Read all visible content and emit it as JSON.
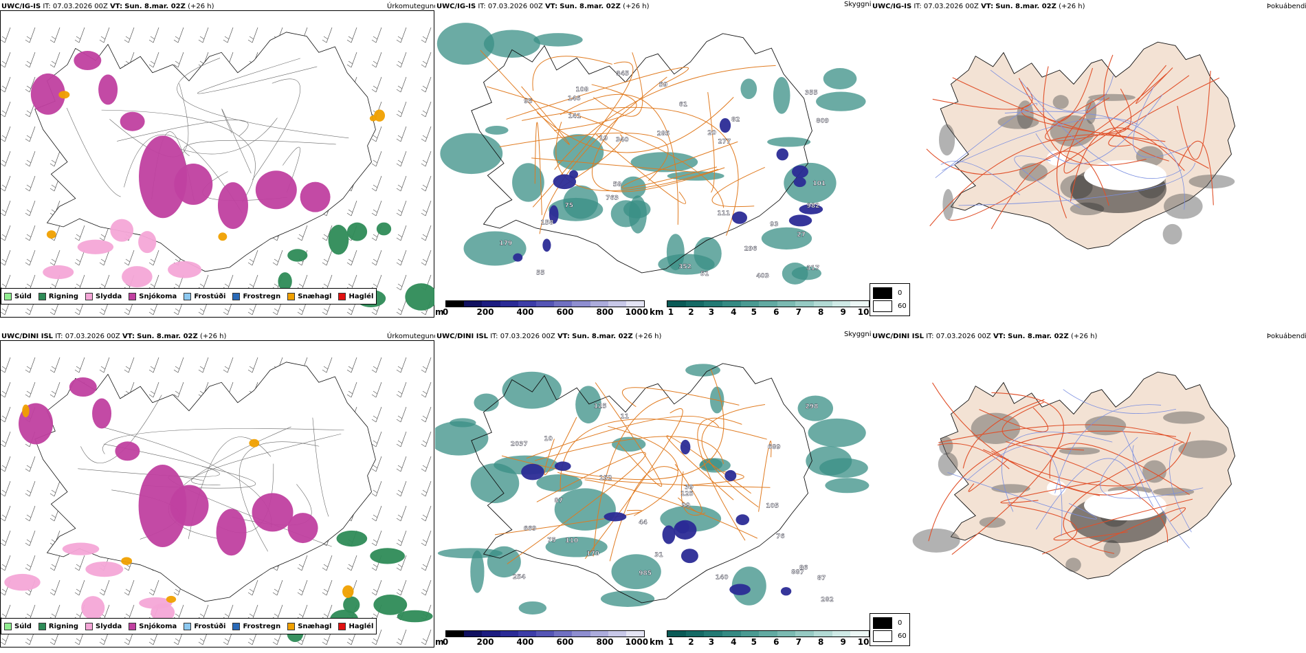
{
  "panels": [
    {
      "precip": {
        "model": "UWC/IG-IS",
        "it_label": "IT:",
        "it": "07.03.2026 00Z",
        "vt_label": "VT:",
        "vt": "Sun. 8.mar. 02Z",
        "lead": "(+26 h)",
        "name": "Úrkomutegund"
      },
      "cloud": {
        "model": "UWC/IG-IS",
        "it_label": "IT:",
        "it": "07.03.2026 00Z",
        "vt_label": "VT:",
        "vt": "Sun. 8.mar. 02Z",
        "lead": "(+26 h)",
        "name": "Skyggni"
      },
      "fog": {
        "model": "UWC/IG-IS",
        "it_label": "IT:",
        "it": "07.03.2026 00Z",
        "vt_label": "VT:",
        "vt": "Sun. 8.mar. 02Z",
        "lead": "(+26 h)",
        "name": "Þokuábendi"
      },
      "labels": [
        "19",
        "179",
        "51",
        "277",
        "141",
        "355",
        "27",
        "95",
        "58",
        "345",
        "317",
        "75",
        "340",
        "55",
        "93",
        "108",
        "101",
        "61",
        "763",
        "403",
        "82",
        "809",
        "982",
        "20",
        "285",
        "296",
        "111",
        "146",
        "352",
        "158",
        "59"
      ]
    },
    {
      "precip": {
        "model": "UWC/DINI ISL",
        "it_label": "IT:",
        "it": "07.03.2026 00Z",
        "vt_label": "VT:",
        "vt": "Sun. 8.mar. 02Z",
        "lead": "(+26 h)",
        "name": "Úrkomutegund"
      },
      "cloud": {
        "model": "UWC/DINI ISL",
        "it_label": "IT:",
        "it": "07.03.2026 00Z",
        "vt_label": "VT:",
        "vt": "Sun. 8.mar. 02Z",
        "lead": "(+26 h)",
        "name": "Skyggni"
      },
      "fog": {
        "model": "UWC/DINI ISL",
        "it_label": "IT:",
        "it": "07.03.2026 00Z",
        "vt_label": "VT:",
        "vt": "Sun. 8.mar. 02Z",
        "lead": "(+26 h)",
        "name": "Þokuábendi"
      },
      "labels": [
        "282",
        "31",
        "110",
        "125",
        "298",
        "76",
        "11",
        "170",
        "10",
        "125",
        "689",
        "44",
        "87",
        "86",
        "2037",
        "99",
        "887",
        "152",
        "254",
        "669",
        "39",
        "87",
        "105",
        "75",
        "140",
        "985"
      ]
    }
  ],
  "precip_legend": [
    {
      "label": "Súld",
      "color": "#90ee90"
    },
    {
      "label": "Rigning",
      "color": "#2e8b57"
    },
    {
      "label": "Slydda",
      "color": "#f4a6d7"
    },
    {
      "label": "Snjókoma",
      "color": "#c040a0"
    },
    {
      "label": "Frostúði",
      "color": "#8cc8f0"
    },
    {
      "label": "Frostregn",
      "color": "#2a6ab8"
    },
    {
      "label": "Snæhagl",
      "color": "#f0a000"
    },
    {
      "label": "Haglél",
      "color": "#e01010"
    }
  ],
  "ceiling_scale": {
    "unit": "m",
    "ticks": [
      "0",
      "200",
      "400",
      "600",
      "800",
      "1000"
    ],
    "colors": [
      "#000000",
      "#101060",
      "#1c1c80",
      "#2b2b96",
      "#3d3da8",
      "#5555b5",
      "#7070c2",
      "#8e8ed0",
      "#acacdc",
      "#c8c8e8",
      "#e4e4f4"
    ]
  },
  "vis_scale": {
    "unit": "km",
    "ticks": [
      "1",
      "2",
      "3",
      "4",
      "5",
      "6",
      "7",
      "8",
      "9",
      "10"
    ],
    "colors": [
      "#0a5a56",
      "#156a65",
      "#237a74",
      "#358a83",
      "#4a9a92",
      "#62aaa2",
      "#7bbab2",
      "#96cac3",
      "#b2dad4",
      "#cfeae6",
      "#ecf7f5"
    ]
  },
  "fog_legend": {
    "values": [
      "0",
      "60"
    ]
  },
  "colors": {
    "snow": "#c040a0",
    "rain": "#2e8b57",
    "sleet": "#f4a6d7",
    "hail": "#f0a000",
    "low_cloud": "#2b2b96",
    "vis": "#3a8f86",
    "road": "#e07a1f",
    "land": "#f3e2d4",
    "fog_road": "#e0502a",
    "fog_river": "#7a8ee0"
  }
}
